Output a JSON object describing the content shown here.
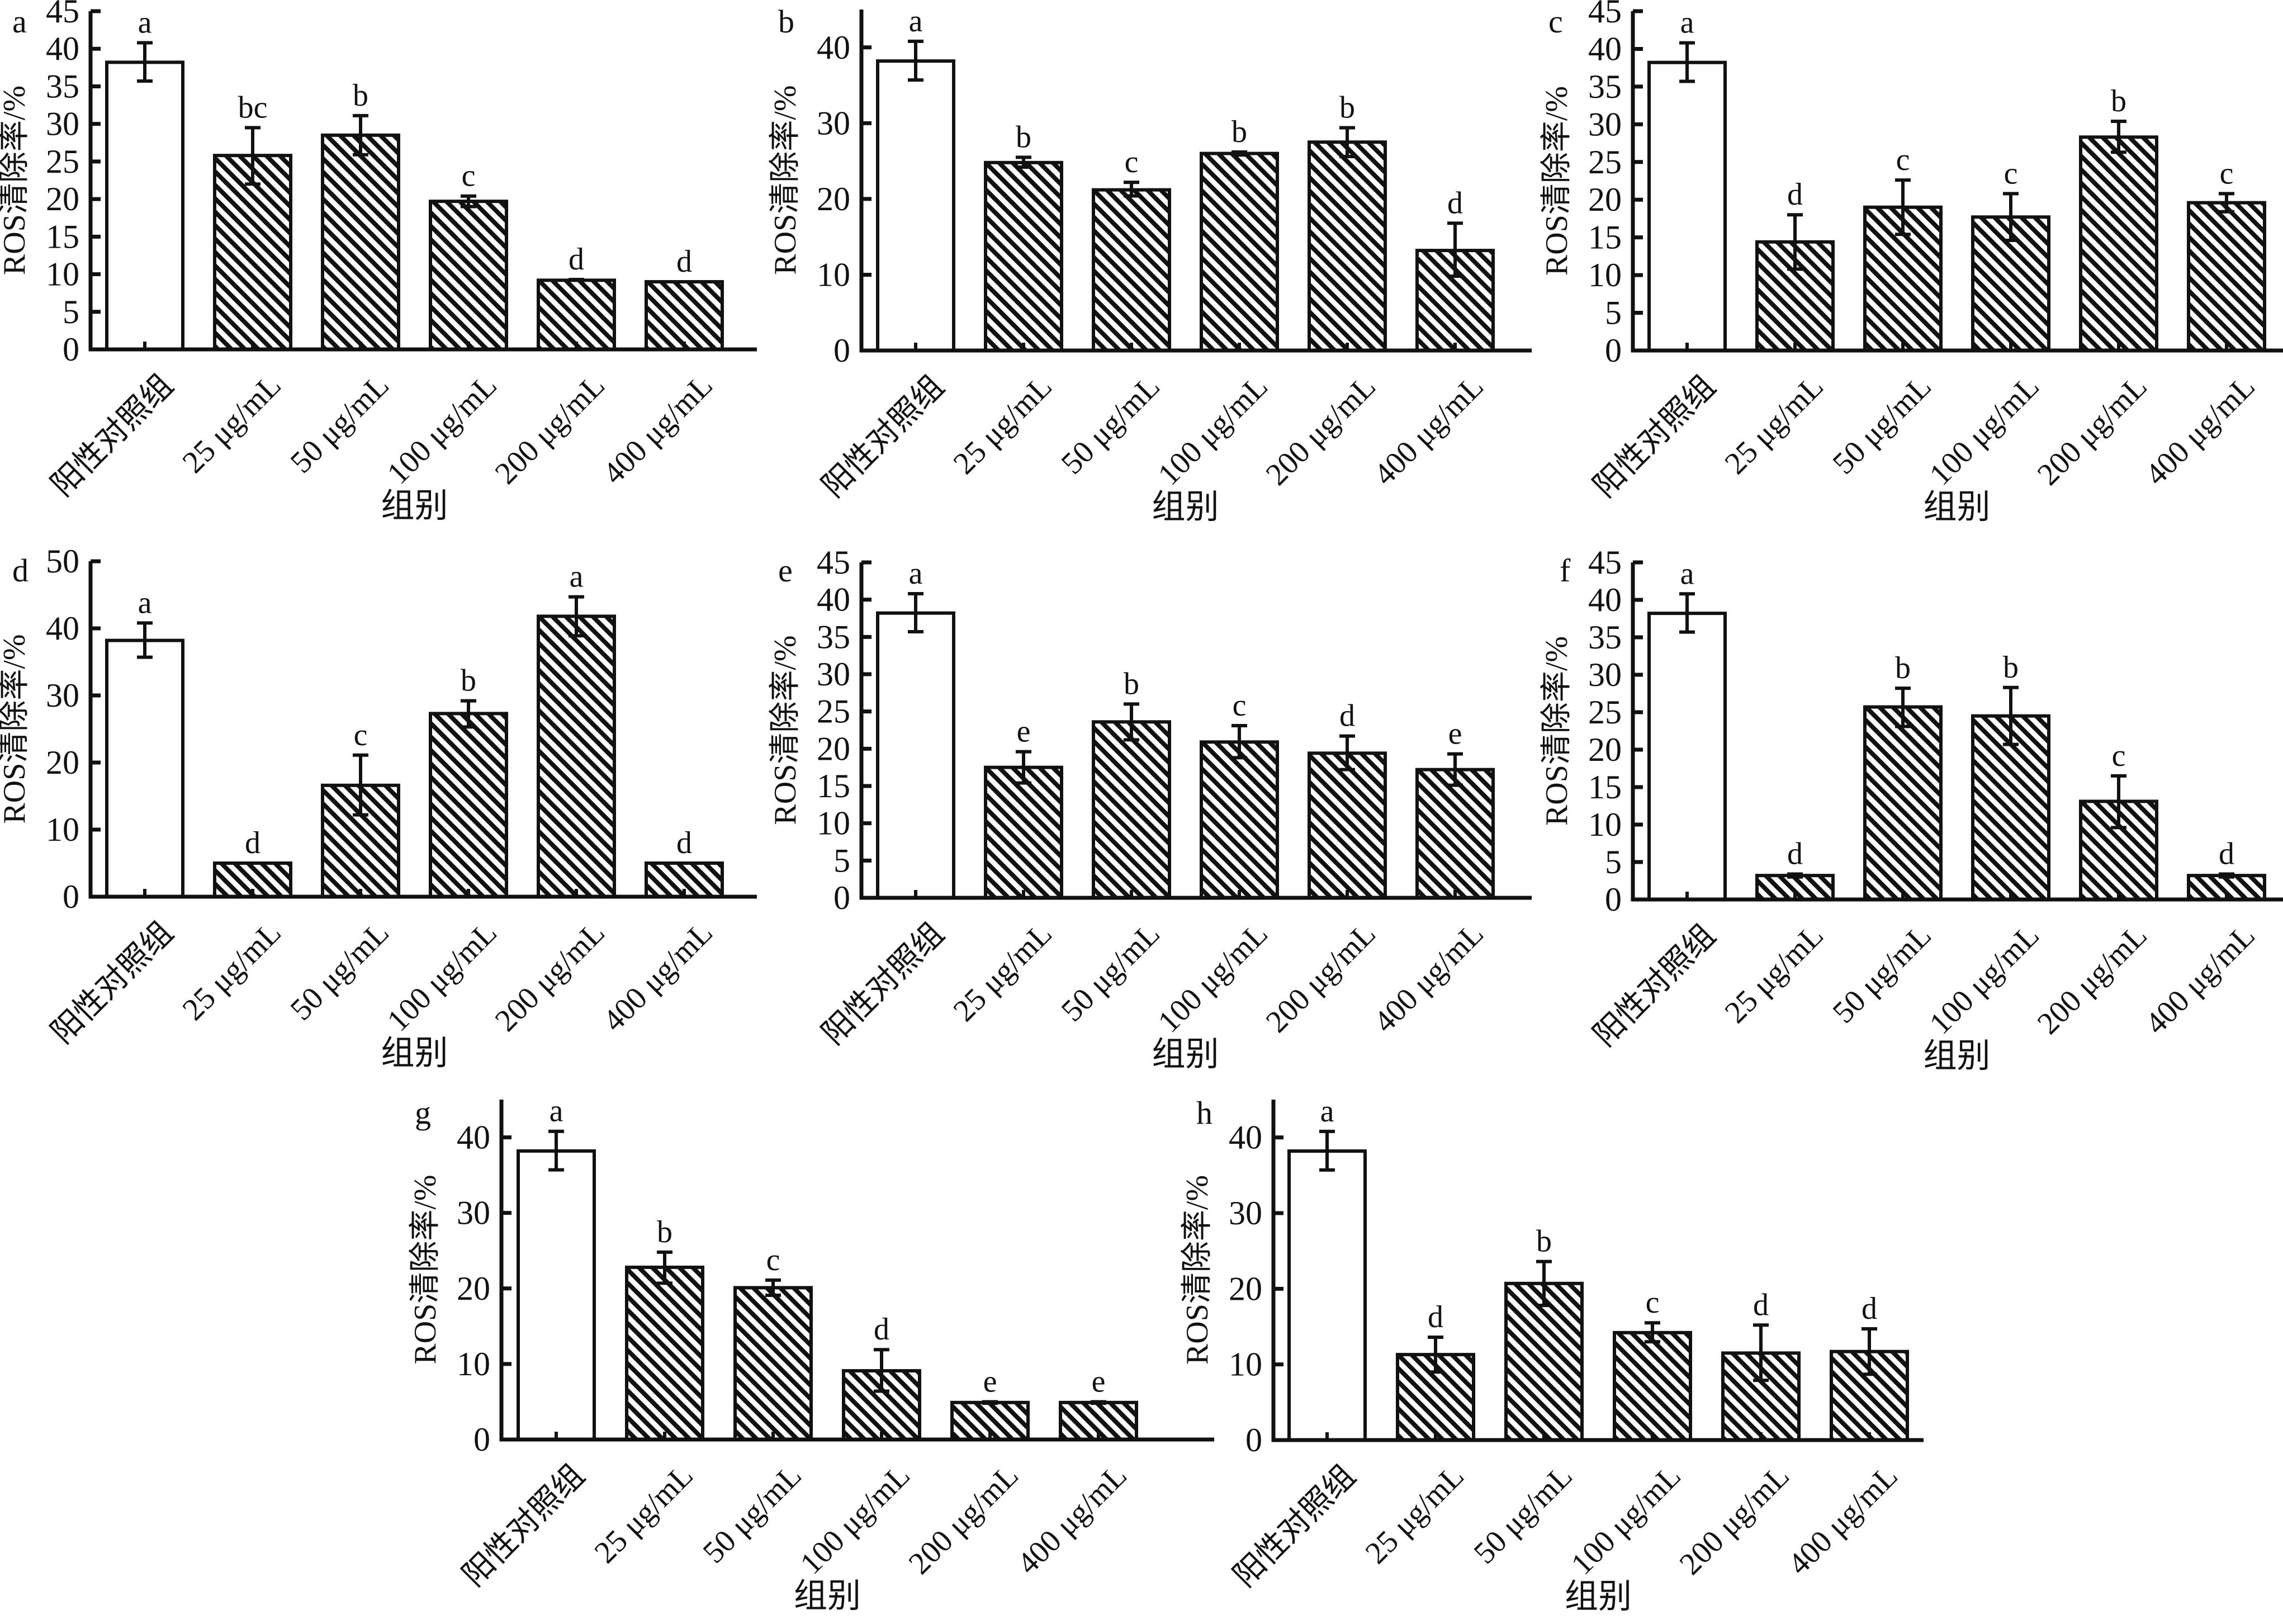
{
  "figure": {
    "common": {
      "ylabel": "ROS清除率/%",
      "xlabel": "组别",
      "categories": [
        "阳性对照组",
        "25 μg/mL",
        "50 μg/mL",
        "100 μg/mL",
        "200 μg/mL",
        "400 μg/mL"
      ],
      "bar_styles": [
        "open",
        "hatched",
        "hatched",
        "hatched",
        "hatched",
        "hatched"
      ]
    }
  },
  "chart_data": [
    {
      "panel": "a",
      "type": "bar",
      "title": "",
      "xlabel": "组别",
      "ylabel": "ROS清除率/%",
      "categories": [
        "阳性对照组",
        "25 μg/mL",
        "50 μg/mL",
        "100 μg/mL",
        "200 μg/mL",
        "400 μg/mL"
      ],
      "values": [
        38.2,
        25.8,
        28.5,
        19.7,
        9.2,
        9.0
      ],
      "error_low": [
        35.7,
        22.0,
        25.9,
        19.0,
        9.2,
        9.0
      ],
      "error_high": [
        40.8,
        29.5,
        31.1,
        20.4,
        9.3,
        9.0
      ],
      "significance": [
        "a",
        "bc",
        "b",
        "c",
        "d",
        "d"
      ],
      "ylim": [
        0,
        45
      ],
      "yticks": [
        0,
        5,
        10,
        15,
        20,
        25,
        30,
        35,
        40,
        45
      ],
      "grid": false,
      "legend": "none"
    },
    {
      "panel": "b",
      "type": "bar",
      "title": "",
      "xlabel": "组别",
      "ylabel": "ROS清除率/%",
      "categories": [
        "阳性对照组",
        "25 μg/mL",
        "50 μg/mL",
        "100 μg/mL",
        "200 μg/mL",
        "400 μg/mL"
      ],
      "values": [
        38.2,
        24.8,
        21.2,
        26.0,
        27.5,
        13.2
      ],
      "error_low": [
        35.7,
        24.2,
        20.4,
        25.8,
        25.6,
        9.8
      ],
      "error_high": [
        40.8,
        25.5,
        22.2,
        26.2,
        29.4,
        16.8
      ],
      "significance": [
        "a",
        "b",
        "c",
        "b",
        "b",
        "d"
      ],
      "ylim": [
        0,
        45
      ],
      "yticks": [
        0,
        10,
        20,
        30,
        40
      ],
      "grid": false,
      "legend": "none"
    },
    {
      "panel": "c",
      "type": "bar",
      "title": "",
      "xlabel": "组别",
      "ylabel": "ROS清除率/%",
      "categories": [
        "阳性对照组",
        "25 μg/mL",
        "50 μg/mL",
        "100 μg/mL",
        "200 μg/mL",
        "400 μg/mL"
      ],
      "values": [
        38.2,
        14.4,
        19.0,
        17.7,
        28.3,
        19.6
      ],
      "error_low": [
        35.7,
        10.8,
        15.4,
        14.6,
        26.3,
        18.4
      ],
      "error_high": [
        40.8,
        18.0,
        22.6,
        20.8,
        30.4,
        20.8
      ],
      "significance": [
        "a",
        "d",
        "c",
        "c",
        "b",
        "c"
      ],
      "ylim": [
        0,
        45
      ],
      "yticks": [
        0,
        5,
        10,
        15,
        20,
        25,
        30,
        35,
        40,
        45
      ],
      "grid": false,
      "legend": "none"
    },
    {
      "panel": "d",
      "type": "bar",
      "title": "",
      "xlabel": "组别",
      "ylabel": "ROS清除率/%",
      "categories": [
        "阳性对照组",
        "25 μg/mL",
        "50 μg/mL",
        "100 μg/mL",
        "200 μg/mL",
        "400 μg/mL"
      ],
      "values": [
        38.2,
        5.0,
        16.6,
        27.3,
        41.8,
        5.0
      ],
      "error_low": [
        35.7,
        5.0,
        12.2,
        25.3,
        38.9,
        5.0
      ],
      "error_high": [
        40.8,
        5.0,
        21.1,
        29.2,
        44.7,
        5.0
      ],
      "significance": [
        "a",
        "d",
        "c",
        "b",
        "a",
        "d"
      ],
      "ylim": [
        0,
        50
      ],
      "yticks": [
        0,
        10,
        20,
        30,
        40,
        50
      ],
      "grid": false,
      "legend": "none"
    },
    {
      "panel": "e",
      "type": "bar",
      "title": "",
      "xlabel": "组别",
      "ylabel": "ROS清除率/%",
      "categories": [
        "阳性对照组",
        "25 μg/mL",
        "50 μg/mL",
        "100 μg/mL",
        "200 μg/mL",
        "400 μg/mL"
      ],
      "values": [
        38.2,
        17.5,
        23.6,
        20.9,
        19.4,
        17.2
      ],
      "error_low": [
        35.7,
        15.4,
        21.2,
        18.8,
        17.2,
        15.1
      ],
      "error_high": [
        40.8,
        19.6,
        26.0,
        23.1,
        21.7,
        19.3
      ],
      "significance": [
        "a",
        "e",
        "b",
        "c",
        "d",
        "e"
      ],
      "ylim": [
        0,
        45
      ],
      "yticks": [
        0,
        5,
        10,
        15,
        20,
        25,
        30,
        35,
        40,
        45
      ],
      "grid": false,
      "legend": "none"
    },
    {
      "panel": "f",
      "type": "bar",
      "title": "",
      "xlabel": "组别",
      "ylabel": "ROS清除率/%",
      "categories": [
        "阳性对照组",
        "25 μg/mL",
        "50 μg/mL",
        "100 μg/mL",
        "200 μg/mL",
        "400 μg/mL"
      ],
      "values": [
        38.2,
        3.2,
        25.7,
        24.5,
        13.1,
        3.2
      ],
      "error_low": [
        35.7,
        3.0,
        23.1,
        20.7,
        9.6,
        3.0
      ],
      "error_high": [
        40.8,
        3.4,
        28.2,
        28.3,
        16.5,
        3.4
      ],
      "significance": [
        "a",
        "d",
        "b",
        "b",
        "c",
        "d"
      ],
      "ylim": [
        0,
        45
      ],
      "yticks": [
        0,
        5,
        10,
        15,
        20,
        25,
        30,
        35,
        40,
        45
      ],
      "grid": false,
      "legend": "none"
    },
    {
      "panel": "g",
      "type": "bar",
      "title": "",
      "xlabel": "组别",
      "ylabel": "ROS清除率/%",
      "categories": [
        "阳性对照组",
        "25 μg/mL",
        "50 μg/mL",
        "100 μg/mL",
        "200 μg/mL",
        "400 μg/mL"
      ],
      "values": [
        38.2,
        22.8,
        20.1,
        9.1,
        4.9,
        4.9
      ],
      "error_low": [
        35.7,
        20.7,
        19.1,
        6.4,
        4.8,
        4.8
      ],
      "error_high": [
        40.8,
        24.8,
        21.1,
        11.9,
        5.0,
        5.0
      ],
      "significance": [
        "a",
        "b",
        "c",
        "d",
        "e",
        "e"
      ],
      "ylim": [
        0,
        45
      ],
      "yticks": [
        0,
        10,
        20,
        30,
        40
      ],
      "grid": false,
      "legend": "none"
    },
    {
      "panel": "h",
      "type": "bar",
      "title": "",
      "xlabel": "组别",
      "ylabel": "ROS清除率/%",
      "categories": [
        "阳性对照组",
        "25 μg/mL",
        "50 μg/mL",
        "100 μg/mL",
        "200 μg/mL",
        "400 μg/mL"
      ],
      "values": [
        38.2,
        11.3,
        20.7,
        14.2,
        11.5,
        11.7
      ],
      "error_low": [
        35.7,
        9.0,
        17.8,
        13.0,
        7.9,
        8.7
      ],
      "error_high": [
        40.8,
        13.6,
        23.6,
        15.5,
        15.2,
        14.7
      ],
      "significance": [
        "a",
        "d",
        "b",
        "c",
        "d",
        "d"
      ],
      "ylim": [
        0,
        45
      ],
      "yticks": [
        0,
        10,
        20,
        30,
        40
      ],
      "grid": false,
      "legend": "none"
    }
  ]
}
